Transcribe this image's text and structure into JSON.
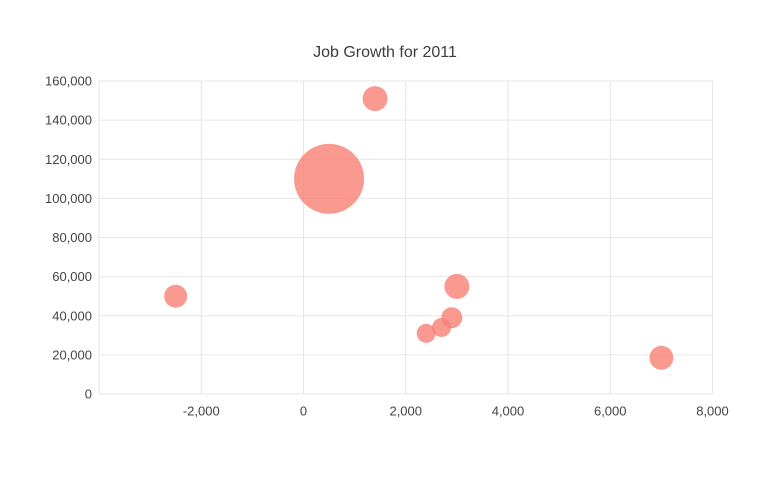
{
  "chart": {
    "title": "Job Growth for 2011"
  },
  "colors": {
    "background": "#FFFFFF",
    "bubble_fill": "#F98074",
    "bubble_opacity": 0.8,
    "gridline": "#E6E6E6",
    "axis_label": "#444444",
    "title": "#3C3C3C"
  },
  "chart_data": {
    "type": "scatter",
    "subtype": "bubble",
    "title": "Job Growth for 2011",
    "xlabel": "",
    "ylabel": "",
    "grid": true,
    "legend": "none",
    "xlim": [
      -4000,
      8000
    ],
    "ylim": [
      0,
      160000
    ],
    "x_ticks": [
      {
        "v": -4000,
        "label": ""
      },
      {
        "v": -2000,
        "label": "-2,000"
      },
      {
        "v": 0,
        "label": "0"
      },
      {
        "v": 2000,
        "label": "2,000"
      },
      {
        "v": 4000,
        "label": "4,000"
      },
      {
        "v": 6000,
        "label": "6,000"
      },
      {
        "v": 8000,
        "label": "8,000"
      }
    ],
    "y_ticks": [
      {
        "v": 0,
        "label": "0"
      },
      {
        "v": 20000,
        "label": "20,000"
      },
      {
        "v": 40000,
        "label": "40,000"
      },
      {
        "v": 60000,
        "label": "60,000"
      },
      {
        "v": 80000,
        "label": "80,000"
      },
      {
        "v": 100000,
        "label": "100,000"
      },
      {
        "v": 120000,
        "label": "120,000"
      },
      {
        "v": 140000,
        "label": "140,000"
      },
      {
        "v": 160000,
        "label": "160,000"
      }
    ],
    "points": [
      {
        "x": 500,
        "y": 110000,
        "r": 35
      },
      {
        "x": 3000,
        "y": 55000,
        "r": 12.5
      },
      {
        "x": 1400,
        "y": 151000,
        "r": 12.5
      },
      {
        "x": 7000,
        "y": 18500,
        "r": 12
      },
      {
        "x": -2500,
        "y": 50000,
        "r": 11.5
      },
      {
        "x": 2900,
        "y": 39000,
        "r": 10.5
      },
      {
        "x": 2700,
        "y": 34000,
        "r": 9.5
      },
      {
        "x": 2400,
        "y": 31000,
        "r": 9.5
      }
    ]
  }
}
